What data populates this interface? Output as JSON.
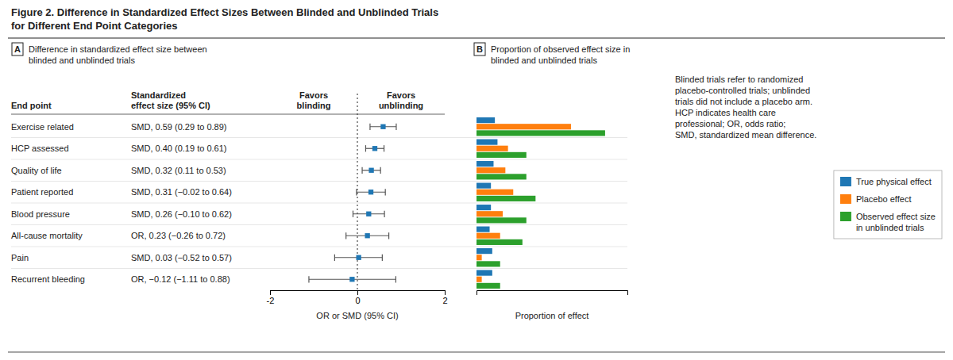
{
  "chart_data": [
    {
      "type": "forest",
      "title": "Figure 2. Difference in Standardized Effect Sizes Between Blinded and Unblinded Trials\nfor Different End Point Categories",
      "subtitle": "Difference in standardized effect size between\nblinded and unblinded trials",
      "annotations": [
        "A",
        "End point",
        "Standardized\neffect size (95% CI)",
        "Favors\nblinding",
        "Favors\nunblinding"
      ],
      "xlabel": "OR or SMD (95% CI)",
      "orientation": "horizontal",
      "marker": "square",
      "categories": [
        "Exercise related",
        "HCP assessed",
        "Quality of life",
        "Patient reported",
        "Blood pressure",
        "All-cause mortality",
        "Pain",
        "Recurrent bleeding"
      ],
      "values": [
        0.59,
        0.4,
        0.32,
        0.31,
        0.26,
        0.23,
        0.03,
        -0.12
      ],
      "ci_low": [
        0.29,
        0.19,
        0.11,
        -0.02,
        -0.1,
        -0.26,
        -0.52,
        -1.11
      ],
      "ci_high": [
        0.89,
        0.61,
        0.53,
        0.64,
        0.62,
        0.72,
        0.57,
        0.88
      ],
      "value_labels": [
        "SMD, 0.59 (0.29 to 0.89)",
        "SMD, 0.40 (0.19 to 0.61)",
        "SMD, 0.32 (0.11 to 0.53)",
        "SMD, 0.31 (−0.02 to 0.64)",
        "SMD, 0.26 (−0.10 to 0.62)",
        "OR, 0.23 (−0.26 to 0.72)",
        "SMD, 0.03 (−0.52 to 0.57)",
        "OR, −0.12 (−1.11 to 0.88)"
      ],
      "data_labels": true,
      "xlim": [
        -2,
        2
      ],
      "xticks": [
        -2,
        0,
        2
      ],
      "reference_line": 0
    },
    {
      "type": "bar",
      "orientation": "horizontal",
      "subtitle": "Proportion of observed effect size in\nblinded and unblinded trials",
      "annotations": [
        "B",
        "Blinded trials refer to randomized\nplacebo-controlled trials; unblinded\ntrials did not include a placebo arm.\nHCP indicates health care\nprofessional; OR, odds ratio;\nSMD, standardized mean difference."
      ],
      "xlabel": "Proportion of effect",
      "categories": [
        "Exercise related",
        "HCP assessed",
        "Quality of life",
        "Patient reported",
        "Blood pressure",
        "All-cause mortality",
        "Pain",
        "Recurrent bleeding"
      ],
      "series": [
        {
          "name": "True physical effect",
          "values": [
            0.14,
            0.16,
            0.13,
            0.11,
            0.11,
            0.1,
            0.12,
            0.12
          ]
        },
        {
          "name": "Placebo effect",
          "values": [
            0.72,
            0.24,
            0.22,
            0.28,
            0.2,
            0.18,
            0.04,
            0.04
          ]
        },
        {
          "name": "Observed effect size\nin unblinded trials",
          "values": [
            0.98,
            0.38,
            0.38,
            0.45,
            0.38,
            0.35,
            0.18,
            0.18
          ]
        }
      ],
      "xlim": [
        0,
        1.15
      ],
      "xticks": [],
      "tick_labels": false,
      "legend": "right"
    }
  ]
}
